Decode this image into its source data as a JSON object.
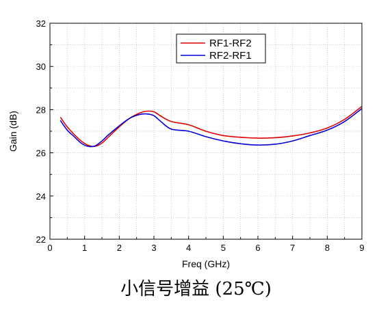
{
  "chart_data": {
    "type": "line",
    "title": "",
    "xlabel": "Freq (GHz)",
    "ylabel": "Gain (dB)",
    "xlim": [
      0,
      9
    ],
    "ylim": [
      22,
      32
    ],
    "xticks": [
      0,
      1,
      2,
      3,
      4,
      5,
      6,
      7,
      8,
      9
    ],
    "yticks": [
      22,
      24,
      26,
      28,
      30,
      32
    ],
    "grid": true,
    "legend_position": "top-center",
    "series": [
      {
        "name": "RF1-RF2",
        "color": "#e00000",
        "x": [
          0.3,
          0.5,
          0.7,
          0.9,
          1.1,
          1.3,
          1.5,
          1.7,
          2.0,
          2.3,
          2.6,
          2.8,
          3.0,
          3.2,
          3.5,
          4.0,
          4.5,
          5.0,
          5.5,
          6.0,
          6.5,
          7.0,
          7.5,
          8.0,
          8.5,
          9.0
        ],
        "y": [
          27.65,
          27.2,
          26.85,
          26.55,
          26.35,
          26.3,
          26.45,
          26.75,
          27.2,
          27.6,
          27.85,
          27.93,
          27.9,
          27.7,
          27.45,
          27.3,
          27.0,
          26.8,
          26.72,
          26.68,
          26.7,
          26.78,
          26.92,
          27.15,
          27.55,
          28.15
        ]
      },
      {
        "name": "RF2-RF1",
        "color": "#0000d8",
        "x": [
          0.3,
          0.5,
          0.7,
          0.9,
          1.1,
          1.3,
          1.5,
          1.7,
          2.0,
          2.3,
          2.6,
          2.8,
          3.0,
          3.2,
          3.5,
          4.0,
          4.5,
          5.0,
          5.5,
          6.0,
          6.5,
          7.0,
          7.5,
          8.0,
          8.5,
          9.0
        ],
        "y": [
          27.5,
          27.05,
          26.75,
          26.45,
          26.3,
          26.32,
          26.55,
          26.85,
          27.25,
          27.6,
          27.78,
          27.8,
          27.72,
          27.45,
          27.1,
          27.0,
          26.75,
          26.55,
          26.42,
          26.36,
          26.4,
          26.55,
          26.8,
          27.05,
          27.45,
          28.05
        ]
      }
    ]
  },
  "caption": "小信号增益 (25℃)"
}
